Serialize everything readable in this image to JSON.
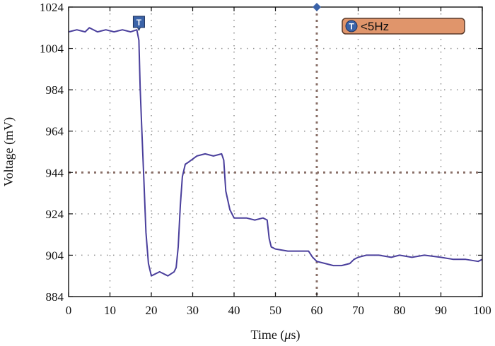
{
  "chart_data": {
    "type": "line",
    "title": "",
    "xlabel_prefix": "Time (",
    "xlabel_unit": "μ",
    "xlabel_suffix": "s)",
    "ylabel": "Voltage (mV)",
    "xlim": [
      0,
      100
    ],
    "ylim": [
      884,
      1024
    ],
    "x_ticks": [
      0,
      10,
      20,
      30,
      40,
      50,
      60,
      70,
      80,
      90,
      100
    ],
    "y_ticks": [
      884,
      904,
      924,
      944,
      964,
      984,
      1004,
      1024
    ],
    "grid": true,
    "trigger_level_mV": 944,
    "trigger_time_us": 60,
    "trigger_marker_time_us": 17,
    "trigger_marker_label": "T",
    "trigger_badge": {
      "icon": "T",
      "text": "<5Hz"
    },
    "series": [
      {
        "points": [
          [
            0,
            1012
          ],
          [
            2,
            1013
          ],
          [
            4,
            1012
          ],
          [
            5,
            1014
          ],
          [
            7,
            1012
          ],
          [
            9,
            1013
          ],
          [
            11,
            1012
          ],
          [
            13,
            1013
          ],
          [
            15,
            1012
          ],
          [
            16.5,
            1013
          ],
          [
            17,
            1008
          ],
          [
            17.3,
            985
          ],
          [
            17.7,
            965
          ],
          [
            18.2,
            940
          ],
          [
            18.7,
            915
          ],
          [
            19.3,
            900
          ],
          [
            20,
            894
          ],
          [
            22,
            896
          ],
          [
            24,
            894
          ],
          [
            25.5,
            896
          ],
          [
            26,
            898
          ],
          [
            26.5,
            908
          ],
          [
            27,
            928
          ],
          [
            27.5,
            942
          ],
          [
            28.2,
            948
          ],
          [
            29,
            949
          ],
          [
            31,
            952
          ],
          [
            33,
            953
          ],
          [
            35,
            952
          ],
          [
            37,
            953
          ],
          [
            37.5,
            950
          ],
          [
            38,
            935
          ],
          [
            39,
            926
          ],
          [
            40,
            922
          ],
          [
            43,
            922
          ],
          [
            45,
            921
          ],
          [
            47,
            922
          ],
          [
            48,
            921
          ],
          [
            48.5,
            912
          ],
          [
            49,
            908
          ],
          [
            50,
            907
          ],
          [
            53,
            906
          ],
          [
            56,
            906
          ],
          [
            58,
            906
          ],
          [
            59,
            903
          ],
          [
            60,
            901
          ],
          [
            62,
            900
          ],
          [
            64,
            899
          ],
          [
            66,
            899
          ],
          [
            68,
            900
          ],
          [
            69,
            902
          ],
          [
            70,
            903
          ],
          [
            72,
            904
          ],
          [
            75,
            904
          ],
          [
            78,
            903
          ],
          [
            80,
            904
          ],
          [
            83,
            903
          ],
          [
            86,
            904
          ],
          [
            90,
            903
          ],
          [
            93,
            902
          ],
          [
            96,
            902
          ],
          [
            99,
            901
          ],
          [
            100,
            902
          ]
        ]
      }
    ]
  },
  "colors": {
    "trace": "#4a3f9c",
    "grid": "#8f8f8f",
    "trigger_line": "#8a7068",
    "badge_fill": "#e0956b",
    "badge_border": "#5a3a2a",
    "marker": "#3b63a8",
    "axis": "#111111"
  }
}
